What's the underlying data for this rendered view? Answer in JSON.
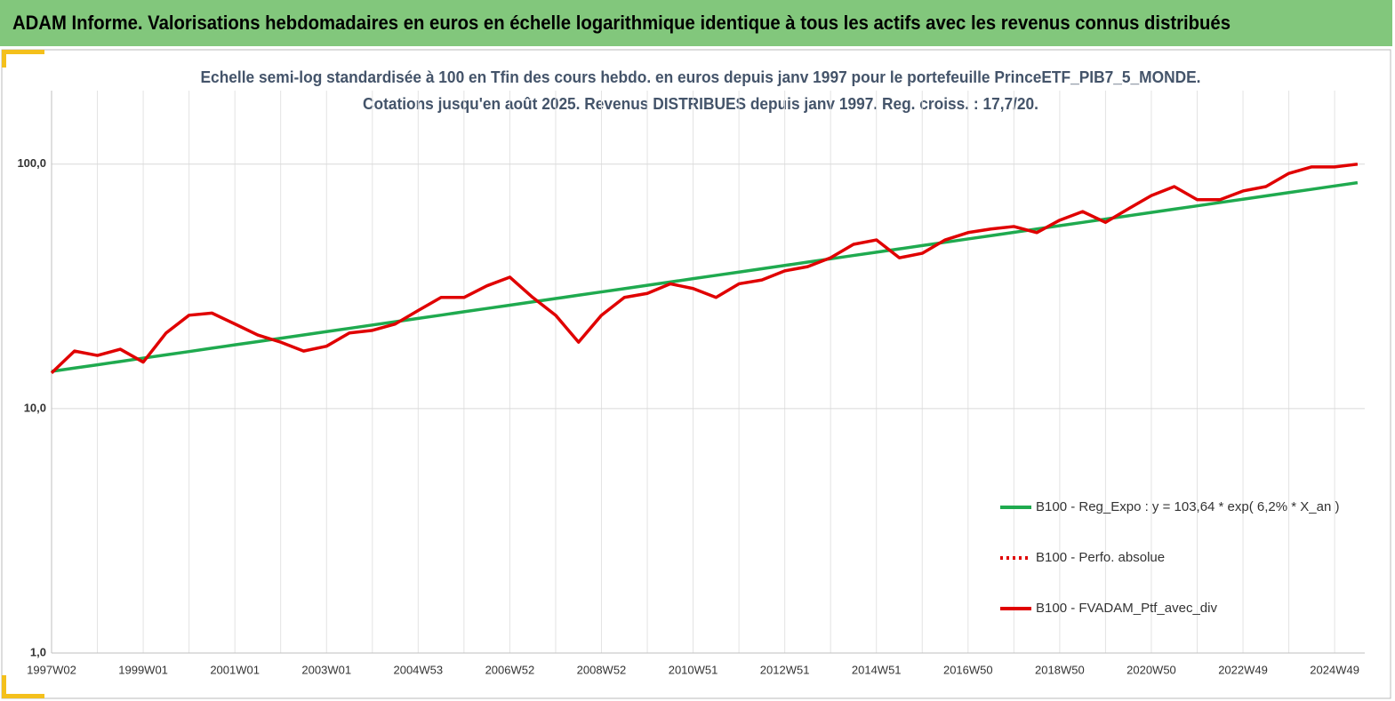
{
  "header": {
    "title": "ADAM Informe. Valorisations hebdomadaires en euros en échelle logarithmique identique à tous les actifs avec les revenus connus distribués"
  },
  "chart_data": {
    "type": "line",
    "title": "Echelle semi-log standardisée à 100 en Tfin des cours hebdo. en euros depuis janv 1997 pour le portefeuille PrinceETF_PIB7_5_MONDE.",
    "subtitle": "Cotations jusqu'en août 2025. Revenus DISTRIBUES depuis janv 1997. Reg. croiss. : 17,7/20.",
    "yscale": "log",
    "grid": true,
    "legend": "right",
    "ylim": [
      1,
      200
    ],
    "yticks": [
      {
        "value": 1,
        "label": "1,0"
      },
      {
        "value": 10,
        "label": "10,0"
      },
      {
        "value": 100,
        "label": "100,0"
      }
    ],
    "categories": [
      "1997W02",
      null,
      null,
      null,
      "1999W01",
      null,
      null,
      null,
      "2001W01",
      null,
      null,
      null,
      "2003W01",
      null,
      null,
      null,
      "2004W53",
      null,
      null,
      null,
      "2006W52",
      null,
      null,
      null,
      "2008W52",
      null,
      null,
      null,
      "2010W51",
      null,
      null,
      null,
      "2012W51",
      null,
      null,
      null,
      "2014W51",
      null,
      null,
      null,
      "2016W50",
      null,
      null,
      null,
      "2018W50",
      null,
      null,
      null,
      "2020W50",
      null,
      null,
      null,
      "2022W49",
      null,
      null,
      null,
      "2024W49",
      null
    ],
    "series": [
      {
        "name": "B100 - Reg_Expo : y = 103,64 * exp( 6,2% *  X_an )",
        "color": "#1faa4f",
        "style": "solid",
        "values": [
          14.2,
          14.65,
          15.11,
          15.59,
          16.09,
          16.6,
          17.12,
          17.67,
          18.23,
          18.8,
          19.4,
          20.01,
          20.65,
          21.3,
          21.98,
          22.67,
          23.39,
          24.13,
          24.9,
          25.69,
          26.5,
          27.34,
          28.2,
          29.1,
          30.02,
          30.97,
          31.95,
          32.96,
          34.01,
          35.09,
          36.2,
          37.35,
          38.53,
          39.75,
          41.01,
          42.31,
          43.65,
          45.03,
          46.46,
          47.93,
          49.45,
          51.02,
          52.63,
          54.3,
          56.02,
          57.8,
          59.63,
          61.52,
          63.47,
          65.48,
          67.55,
          69.69,
          71.9,
          74.18,
          76.53,
          78.95,
          81.45,
          84.03
        ]
      },
      {
        "name": "B100 - Perfo. absolue",
        "color": "#e00000",
        "style": "dotted",
        "values": [
          14.0,
          17.2,
          16.5,
          17.5,
          15.5,
          20.4,
          24.1,
          24.6,
          22.2,
          20.0,
          18.7,
          17.2,
          18.0,
          20.4,
          20.9,
          22.2,
          25.2,
          28.5,
          28.5,
          31.8,
          34.5,
          28.5,
          24.1,
          18.7,
          24.1,
          28.5,
          29.6,
          32.4,
          31.0,
          28.5,
          32.4,
          33.6,
          36.6,
          38.1,
          41.4,
          47.0,
          49.0,
          41.4,
          43.2,
          49.0,
          52.5,
          54.3,
          55.6,
          52.5,
          59.0,
          64.0,
          57.8,
          65.7,
          74.4,
          81.0,
          71.6,
          71.6,
          77.7,
          81.0,
          91.7,
          97.5,
          97.5,
          100
        ]
      },
      {
        "name": "B100 - FVADAM_Ptf_avec_div",
        "color": "#e00000",
        "style": "solid",
        "values": [
          14.0,
          17.2,
          16.5,
          17.5,
          15.5,
          20.4,
          24.1,
          24.6,
          22.2,
          20.0,
          18.7,
          17.2,
          18.0,
          20.4,
          20.9,
          22.2,
          25.2,
          28.5,
          28.5,
          31.8,
          34.5,
          28.5,
          24.1,
          18.7,
          24.1,
          28.5,
          29.6,
          32.4,
          31.0,
          28.5,
          32.4,
          33.6,
          36.6,
          38.1,
          41.4,
          47.0,
          49.0,
          41.4,
          43.2,
          49.0,
          52.5,
          54.3,
          55.6,
          52.5,
          59.0,
          64.0,
          57.8,
          65.7,
          74.4,
          81.0,
          71.6,
          71.6,
          77.7,
          81.0,
          91.7,
          97.5,
          97.5,
          100
        ]
      }
    ]
  }
}
